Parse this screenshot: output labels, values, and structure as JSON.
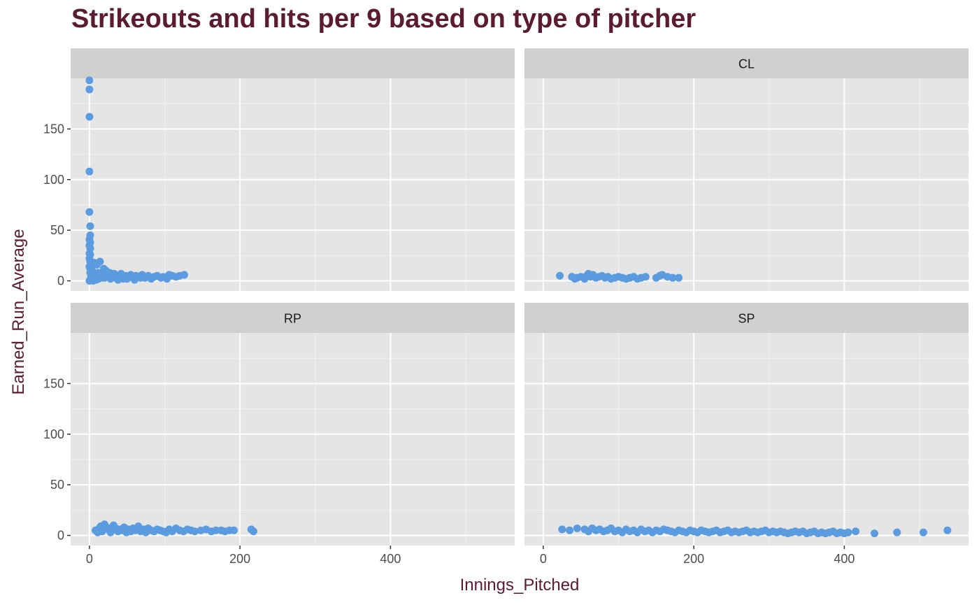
{
  "chart_data": {
    "type": "scatter",
    "title": "Strikeouts and hits per 9 based on type of pitcher",
    "xlabel": "Innings_Pitched",
    "ylabel": "Earned_Run_Average",
    "xlim": [
      -25,
      565
    ],
    "ylim": [
      -10,
      200
    ],
    "x_ticks": [
      0,
      200,
      400
    ],
    "y_ticks": [
      0,
      50,
      100,
      150
    ],
    "facet_grid": "2x2",
    "grid": true,
    "point_color": "#5b9be0",
    "panel_bg": "#e5e5e5",
    "strip_bg": "#d0d0d0",
    "title_color": "#5c1a33",
    "facets": [
      {
        "label": "",
        "points": [
          [
            0,
            198
          ],
          [
            0,
            189
          ],
          [
            0,
            162
          ],
          [
            0,
            108
          ],
          [
            0,
            68
          ],
          [
            1,
            54
          ],
          [
            1,
            45
          ],
          [
            0,
            41
          ],
          [
            1,
            38
          ],
          [
            0,
            35
          ],
          [
            1,
            32
          ],
          [
            0,
            27
          ],
          [
            1,
            26
          ],
          [
            0,
            22
          ],
          [
            1,
            19
          ],
          [
            2,
            16
          ],
          [
            0,
            14
          ],
          [
            1,
            12
          ],
          [
            3,
            11
          ],
          [
            2,
            10
          ],
          [
            4,
            9
          ],
          [
            1,
            8
          ],
          [
            5,
            7
          ],
          [
            3,
            6
          ],
          [
            6,
            5
          ],
          [
            2,
            4
          ],
          [
            7,
            3
          ],
          [
            4,
            2
          ],
          [
            9,
            1
          ],
          [
            0,
            0
          ],
          [
            5,
            0
          ],
          [
            6,
            18
          ],
          [
            10,
            16
          ],
          [
            14,
            19
          ],
          [
            19,
            12
          ],
          [
            22,
            10
          ],
          [
            11,
            8
          ],
          [
            15,
            7
          ],
          [
            18,
            5
          ],
          [
            20,
            3
          ],
          [
            12,
            2
          ],
          [
            24,
            6
          ],
          [
            27,
            8
          ],
          [
            30,
            4
          ],
          [
            33,
            7
          ],
          [
            28,
            2
          ],
          [
            36,
            5
          ],
          [
            40,
            3
          ],
          [
            42,
            7
          ],
          [
            45,
            2
          ],
          [
            48,
            5
          ],
          [
            52,
            4
          ],
          [
            55,
            6
          ],
          [
            58,
            3
          ],
          [
            62,
            5
          ],
          [
            66,
            4
          ],
          [
            70,
            6
          ],
          [
            74,
            3
          ],
          [
            78,
            5
          ],
          [
            82,
            2
          ],
          [
            86,
            4
          ],
          [
            90,
            5
          ],
          [
            95,
            3
          ],
          [
            98,
            4
          ],
          [
            103,
            2
          ],
          [
            106,
            6
          ],
          [
            110,
            5
          ],
          [
            115,
            4
          ],
          [
            120,
            5
          ],
          [
            126,
            6
          ],
          [
            8,
            4
          ],
          [
            13,
            5
          ],
          [
            16,
            3
          ],
          [
            25,
            4
          ],
          [
            35,
            3
          ],
          [
            38,
            1
          ],
          [
            50,
            2
          ],
          [
            60,
            1
          ],
          [
            68,
            3
          ]
        ]
      },
      {
        "label": "CL",
        "points": [
          [
            22,
            5
          ],
          [
            38,
            4
          ],
          [
            42,
            2
          ],
          [
            45,
            3
          ],
          [
            50,
            4
          ],
          [
            55,
            2
          ],
          [
            58,
            5
          ],
          [
            60,
            7
          ],
          [
            63,
            4
          ],
          [
            66,
            6
          ],
          [
            70,
            3
          ],
          [
            74,
            4
          ],
          [
            78,
            5
          ],
          [
            82,
            3
          ],
          [
            86,
            4
          ],
          [
            90,
            2
          ],
          [
            95,
            3
          ],
          [
            100,
            4
          ],
          [
            105,
            3
          ],
          [
            110,
            2
          ],
          [
            115,
            3
          ],
          [
            120,
            4
          ],
          [
            125,
            2
          ],
          [
            130,
            3
          ],
          [
            136,
            4
          ],
          [
            150,
            3
          ],
          [
            155,
            5
          ],
          [
            158,
            6
          ],
          [
            165,
            4
          ],
          [
            172,
            3
          ],
          [
            180,
            3
          ]
        ]
      },
      {
        "label": "RP",
        "points": [
          [
            8,
            5
          ],
          [
            11,
            3
          ],
          [
            13,
            7
          ],
          [
            15,
            9
          ],
          [
            17,
            4
          ],
          [
            20,
            11
          ],
          [
            23,
            8
          ],
          [
            25,
            6
          ],
          [
            28,
            3
          ],
          [
            30,
            5
          ],
          [
            32,
            10
          ],
          [
            35,
            7
          ],
          [
            38,
            4
          ],
          [
            40,
            6
          ],
          [
            43,
            5
          ],
          [
            46,
            8
          ],
          [
            49,
            3
          ],
          [
            52,
            6
          ],
          [
            55,
            4
          ],
          [
            58,
            7
          ],
          [
            61,
            5
          ],
          [
            65,
            9
          ],
          [
            68,
            4
          ],
          [
            72,
            6
          ],
          [
            75,
            3
          ],
          [
            78,
            7
          ],
          [
            82,
            5
          ],
          [
            86,
            4
          ],
          [
            90,
            6
          ],
          [
            94,
            5
          ],
          [
            98,
            4
          ],
          [
            102,
            3
          ],
          [
            106,
            6
          ],
          [
            110,
            4
          ],
          [
            115,
            7
          ],
          [
            120,
            5
          ],
          [
            125,
            4
          ],
          [
            130,
            6
          ],
          [
            135,
            5
          ],
          [
            140,
            4
          ],
          [
            148,
            5
          ],
          [
            155,
            6
          ],
          [
            162,
            4
          ],
          [
            168,
            5
          ],
          [
            175,
            5
          ],
          [
            180,
            4
          ],
          [
            186,
            5
          ],
          [
            192,
            5
          ],
          [
            215,
            6
          ],
          [
            218,
            4
          ]
        ]
      },
      {
        "label": "SP",
        "points": [
          [
            25,
            6
          ],
          [
            35,
            5
          ],
          [
            45,
            7
          ],
          [
            55,
            6
          ],
          [
            60,
            4
          ],
          [
            65,
            7
          ],
          [
            70,
            5
          ],
          [
            75,
            6
          ],
          [
            80,
            4
          ],
          [
            85,
            5
          ],
          [
            90,
            7
          ],
          [
            95,
            4
          ],
          [
            100,
            5
          ],
          [
            105,
            3
          ],
          [
            110,
            6
          ],
          [
            115,
            4
          ],
          [
            120,
            5
          ],
          [
            125,
            3
          ],
          [
            130,
            6
          ],
          [
            135,
            4
          ],
          [
            140,
            5
          ],
          [
            145,
            3
          ],
          [
            150,
            5
          ],
          [
            155,
            4
          ],
          [
            160,
            6
          ],
          [
            165,
            5
          ],
          [
            170,
            4
          ],
          [
            175,
            3
          ],
          [
            180,
            5
          ],
          [
            185,
            4
          ],
          [
            190,
            3
          ],
          [
            195,
            5
          ],
          [
            200,
            4
          ],
          [
            205,
            3
          ],
          [
            210,
            5
          ],
          [
            215,
            4
          ],
          [
            220,
            3
          ],
          [
            225,
            4
          ],
          [
            230,
            5
          ],
          [
            235,
            3
          ],
          [
            240,
            4
          ],
          [
            245,
            5
          ],
          [
            250,
            3
          ],
          [
            255,
            4
          ],
          [
            260,
            3
          ],
          [
            265,
            4
          ],
          [
            270,
            5
          ],
          [
            275,
            3
          ],
          [
            280,
            4
          ],
          [
            285,
            3
          ],
          [
            290,
            4
          ],
          [
            295,
            5
          ],
          [
            300,
            3
          ],
          [
            305,
            4
          ],
          [
            310,
            3
          ],
          [
            315,
            4
          ],
          [
            320,
            3
          ],
          [
            325,
            2
          ],
          [
            330,
            3
          ],
          [
            335,
            4
          ],
          [
            340,
            3
          ],
          [
            345,
            4
          ],
          [
            350,
            2
          ],
          [
            355,
            3
          ],
          [
            360,
            4
          ],
          [
            365,
            2
          ],
          [
            370,
            3
          ],
          [
            375,
            2
          ],
          [
            380,
            3
          ],
          [
            385,
            4
          ],
          [
            390,
            2
          ],
          [
            395,
            3
          ],
          [
            400,
            2
          ],
          [
            405,
            3
          ],
          [
            415,
            4
          ],
          [
            440,
            2
          ],
          [
            470,
            3
          ],
          [
            505,
            3
          ],
          [
            537,
            5
          ]
        ]
      }
    ]
  }
}
